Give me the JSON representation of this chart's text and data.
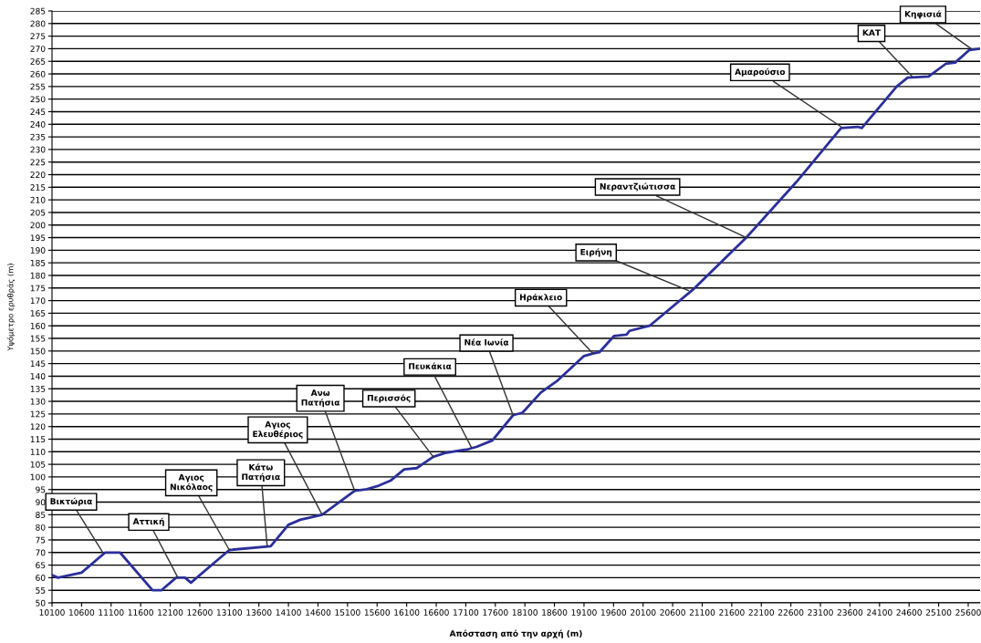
{
  "chart_data": {
    "type": "line",
    "xlabel": "Απόσταση από την αρχή (m)",
    "ylabel": "Υψόμετρο ερυθράς (m)",
    "x": [
      10100,
      10200,
      10600,
      11000,
      11250,
      11800,
      11950,
      12200,
      12350,
      12450,
      12900,
      13100,
      13800,
      14100,
      14300,
      14670,
      15220,
      15400,
      15625,
      15825,
      16057,
      16270,
      16550,
      16750,
      17140,
      17290,
      17550,
      17900,
      18060,
      18370,
      18640,
      19100,
      19250,
      19360,
      19610,
      19820,
      19870,
      20210,
      20950,
      21845,
      22690,
      23450,
      23730,
      23800,
      24390,
      24575,
      24930,
      25220,
      25380,
      25620,
      25800
    ],
    "series": [
      {
        "color": "#2b2f9a",
        "values": [
          61,
          60,
          62,
          70,
          70,
          55,
          55,
          60,
          60,
          58,
          67,
          71,
          72.5,
          81,
          83,
          85,
          94.5,
          95,
          96.5,
          98.5,
          103,
          103.5,
          108,
          109.5,
          111,
          112,
          114.5,
          124.5,
          125.5,
          133.5,
          138,
          148,
          149,
          149.5,
          156,
          156.5,
          158,
          160,
          174.5,
          195,
          217,
          238.5,
          239,
          238.5,
          255,
          258.5,
          259,
          264,
          264.5,
          269.5,
          270
        ]
      }
    ],
    "xlim": [
      10100,
      25800
    ],
    "xticks": [
      10100,
      10600,
      11100,
      11600,
      12100,
      12600,
      13100,
      13600,
      14100,
      14600,
      15100,
      15600,
      16100,
      16600,
      17100,
      17600,
      18100,
      18600,
      19100,
      19600,
      20100,
      20600,
      21100,
      21600,
      22100,
      22600,
      23100,
      23600,
      24100,
      24600,
      25100,
      25600
    ],
    "ylim": [
      50,
      285
    ],
    "yticks": [
      50,
      55,
      60,
      65,
      70,
      75,
      80,
      85,
      90,
      95,
      100,
      105,
      110,
      115,
      120,
      125,
      130,
      135,
      140,
      145,
      150,
      155,
      160,
      165,
      170,
      175,
      180,
      185,
      190,
      195,
      200,
      205,
      210,
      215,
      220,
      225,
      230,
      235,
      240,
      245,
      250,
      255,
      260,
      265,
      270,
      275,
      280,
      285
    ],
    "grid": "y",
    "marker": "none",
    "line_style": "solid",
    "annotations": [
      {
        "text": "Βικτώρια",
        "x": 10960,
        "y": 70
      },
      {
        "text": "Αττική",
        "x": 12230,
        "y": 60
      },
      {
        "text": "Αγιος\nΝικόλαος",
        "x": 13100,
        "y": 71
      },
      {
        "text": "Κάτω\nΠατήσια",
        "x": 13740,
        "y": 72.5
      },
      {
        "text": "Αγιος\nΕλευθέριος",
        "x": 14670,
        "y": 85
      },
      {
        "text": "Ανω\nΠατήσια",
        "x": 15220,
        "y": 94.5
      },
      {
        "text": "Περισσός",
        "x": 16550,
        "y": 108
      },
      {
        "text": "Πευκάκια",
        "x": 17200,
        "y": 111.5
      },
      {
        "text": "Νέα Ιωνία",
        "x": 17900,
        "y": 124.5
      },
      {
        "text": "Ηράκλειο",
        "x": 19250,
        "y": 149
      },
      {
        "text": "Ειρήνη",
        "x": 20870,
        "y": 174
      },
      {
        "text": "Νεραντζιώτισσα",
        "x": 21850,
        "y": 195
      },
      {
        "text": "Αμαρούσιο",
        "x": 23450,
        "y": 239
      },
      {
        "text": "ΚΑΤ",
        "x": 24650,
        "y": 259
      },
      {
        "text": "Κηφισιά",
        "x": 25650,
        "y": 270
      }
    ]
  }
}
